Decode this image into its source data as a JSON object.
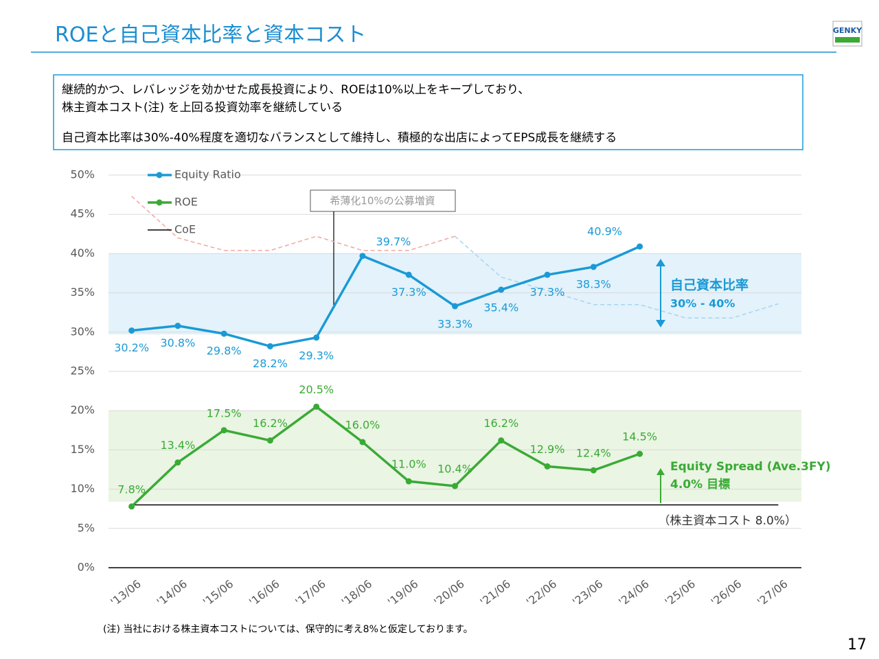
{
  "header": {
    "title": "ROEと自己資本比率と資本コスト",
    "logo": "GENKY"
  },
  "summary": [
    "継続的かつ、レバレッジを効かせた成長投資により、ROEは10%以上をキープしており、",
    "株主資本コスト(注) を上回る投資効率を継続している",
    "自己資本比率は30%-40%程度を適切なバランスとして維持し、積極的な出店によってEPS成長を継続する"
  ],
  "chart_data": {
    "type": "line",
    "categories": [
      "'13/06",
      "'14/06",
      "'15/06",
      "'16/06",
      "'17/06",
      "'18/06",
      "'19/06",
      "'20/06",
      "'21/06",
      "'22/06",
      "'23/06",
      "'24/06",
      "'25/06",
      "'26/06",
      "'27/06"
    ],
    "series": [
      {
        "name": "Equity Ratio",
        "color": "#1a9ad6",
        "marker": true,
        "values": [
          30.2,
          30.8,
          29.8,
          28.2,
          29.3,
          39.7,
          37.3,
          33.3,
          35.4,
          37.3,
          38.3,
          40.9,
          null,
          null,
          null
        ],
        "value_labels": [
          "30.2%",
          "30.8%",
          "29.8%",
          "28.2%",
          "29.3%",
          "39.7%",
          "37.3%",
          "33.3%",
          "35.4%",
          "37.3%",
          "38.3%",
          "40.9%",
          null,
          null,
          null
        ]
      },
      {
        "name": "ROE",
        "color": "#3aaa35",
        "marker": true,
        "values": [
          7.8,
          13.4,
          17.5,
          16.2,
          20.5,
          16.0,
          11.0,
          10.4,
          16.2,
          12.9,
          12.4,
          14.5,
          null,
          null,
          null
        ],
        "value_labels": [
          "7.8%",
          "13.4%",
          "17.5%",
          "16.2%",
          "20.5%",
          "16.0%",
          "11.0%",
          "10.4%",
          "16.2%",
          "12.9%",
          "12.4%",
          "14.5%",
          null,
          null,
          null
        ]
      },
      {
        "name": "CoE",
        "color": "#000000",
        "marker": false,
        "values": [
          8,
          8,
          8,
          8,
          8,
          8,
          8,
          8,
          8,
          8,
          8,
          8,
          8,
          8,
          8
        ]
      },
      {
        "color": "#f4a6a0",
        "dashed": true,
        "values": [
          47.3,
          42,
          40.4,
          40.4,
          42.2,
          40.4,
          40.4,
          42.2,
          null,
          null,
          null,
          null,
          null,
          null,
          null
        ]
      },
      {
        "color": "#a8d4ee",
        "dashed": true,
        "values": [
          null,
          null,
          null,
          null,
          null,
          null,
          null,
          42.2,
          37,
          35.3,
          33.5,
          33.5,
          31.8,
          31.8,
          33.6
        ]
      }
    ],
    "bands": [
      {
        "from": 29.7,
        "to": 40,
        "color": "#e3f2fb"
      },
      {
        "from": 8.4,
        "to": 20,
        "color": "#eaf5e3"
      }
    ],
    "ylim": [
      0,
      50
    ],
    "yticks": [
      {
        "value": 0,
        "label": "0%"
      },
      {
        "value": 5,
        "label": "5%"
      },
      {
        "value": 10,
        "label": "10%"
      },
      {
        "value": 15,
        "label": "15%"
      },
      {
        "value": 20,
        "label": "20%"
      },
      {
        "value": 25,
        "label": "25%"
      },
      {
        "value": 30,
        "label": "30%"
      },
      {
        "value": 35,
        "label": "35%"
      },
      {
        "value": 40,
        "label": "40%"
      },
      {
        "value": 45,
        "label": "45%"
      },
      {
        "value": 50,
        "label": "50%"
      }
    ],
    "grid": true,
    "legend": "top-left",
    "annotations": [
      "希薄化10%の公募増資",
      "自己資本比率",
      "30% - 40%",
      "Equity Spread (Ave.3FY)",
      "4.0% 目標",
      "（株主資本コスト 8.0%）"
    ]
  },
  "footnote": "(注) 当社における株主資本コストについては、保守的に考え8%と仮定しております。",
  "page_number": "17"
}
